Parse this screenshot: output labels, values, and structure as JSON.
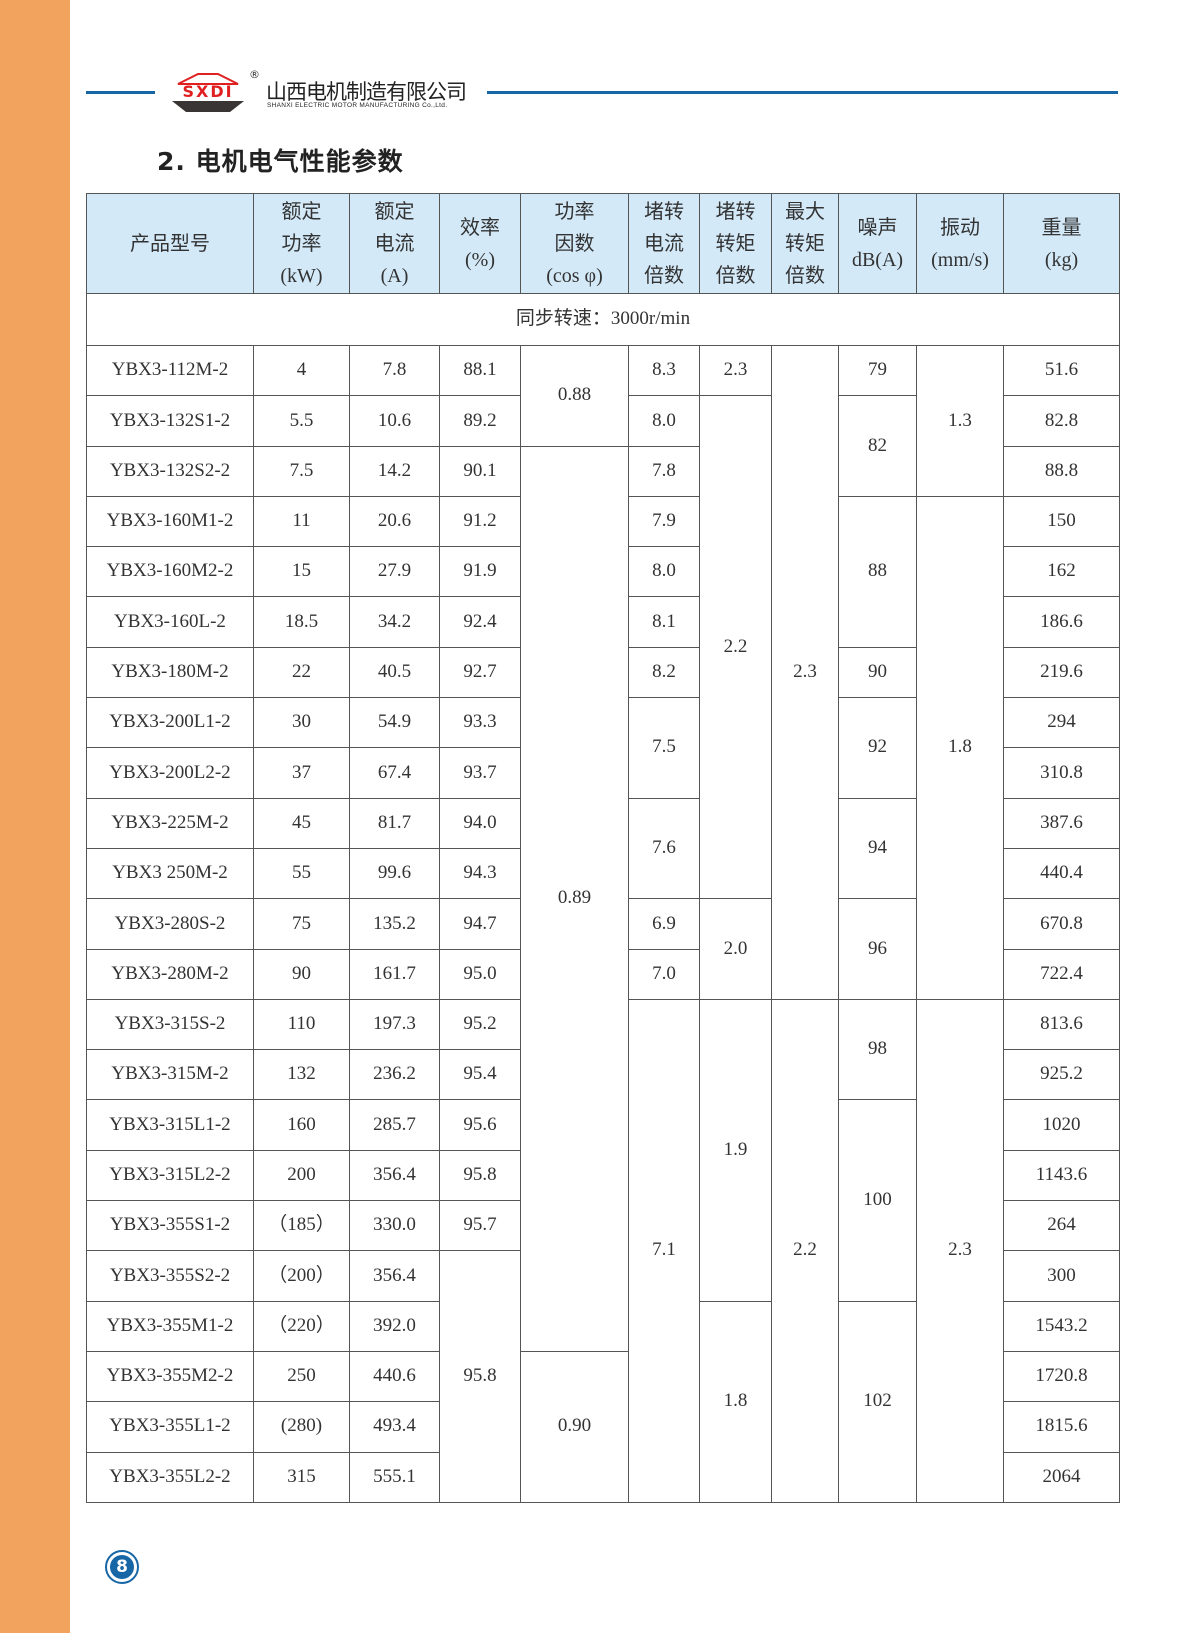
{
  "header": {
    "logo_text": "SXDI",
    "company_name": "山西电机制造有限公司",
    "company_name_en": "SHANXI ELECTRIC MOTOR MANUFACTURING Co.,Ltd.",
    "registered_mark": "®"
  },
  "section_title": "2. 电机电气性能参数",
  "table": {
    "columns": [
      "产品型号",
      "额定\n功率\n(kW)",
      "额定\n电流\n(A)",
      "效率\n(%)",
      "功率\n因数\n(cos φ)",
      "堵转\n电流\n倍数",
      "堵转\n转矩\n倍数",
      "最大\n转矩\n倍数",
      "噪声\ndB(A)",
      "振动\n(mm/s)",
      "重量\n(kg)"
    ],
    "sync_speed": "同步转速：3000r/min",
    "models": [
      "YBX3-112M-2",
      "YBX3-132S1-2",
      "YBX3-132S2-2",
      "YBX3-160M1-2",
      "YBX3-160M2-2",
      "YBX3-160L-2",
      "YBX3-180M-2",
      "YBX3-200L1-2",
      "YBX3-200L2-2",
      "YBX3-225M-2",
      "YBX3 250M-2",
      "YBX3-280S-2",
      "YBX3-280M-2",
      "YBX3-315S-2",
      "YBX3-315M-2",
      "YBX3-315L1-2",
      "YBX3-315L2-2",
      "YBX3-355S1-2",
      "YBX3-355S2-2",
      "YBX3-355M1-2",
      "YBX3-355M2-2",
      "YBX3-355L1-2",
      "YBX3-355L2-2"
    ],
    "power_kw": [
      "4",
      "5.5",
      "7.5",
      "11",
      "15",
      "18.5",
      "22",
      "30",
      "37",
      "45",
      "55",
      "75",
      "90",
      "110",
      "132",
      "160",
      "200",
      "（185）",
      "（200）",
      "（220）",
      "250",
      "(280)",
      "315"
    ],
    "current_a": [
      "7.8",
      "10.6",
      "14.2",
      "20.6",
      "27.9",
      "34.2",
      "40.5",
      "54.9",
      "67.4",
      "81.7",
      "99.6",
      "135.2",
      "161.7",
      "197.3",
      "236.2",
      "285.7",
      "356.4",
      "330.0",
      "356.4",
      "392.0",
      "440.6",
      "493.4",
      "555.1"
    ],
    "efficiency": [
      {
        "value": "88.1",
        "span": 1
      },
      {
        "value": "89.2",
        "span": 1
      },
      {
        "value": "90.1",
        "span": 1
      },
      {
        "value": "91.2",
        "span": 1
      },
      {
        "value": "91.9",
        "span": 1
      },
      {
        "value": "92.4",
        "span": 1
      },
      {
        "value": "92.7",
        "span": 1
      },
      {
        "value": "93.3",
        "span": 1
      },
      {
        "value": "93.7",
        "span": 1
      },
      {
        "value": "94.0",
        "span": 1
      },
      {
        "value": "94.3",
        "span": 1
      },
      {
        "value": "94.7",
        "span": 1
      },
      {
        "value": "95.0",
        "span": 1
      },
      {
        "value": "95.2",
        "span": 1
      },
      {
        "value": "95.4",
        "span": 1
      },
      {
        "value": "95.6",
        "span": 1
      },
      {
        "value": "95.8",
        "span": 1
      },
      {
        "value": "95.7",
        "span": 1
      },
      {
        "value": "95.8",
        "span": 5
      }
    ],
    "power_factor": [
      {
        "value": "0.88",
        "span": 2
      },
      {
        "value": "0.89",
        "span": 18
      },
      {
        "value": "0.90",
        "span": 3
      }
    ],
    "locked_rotor_current": [
      {
        "value": "8.3",
        "span": 1
      },
      {
        "value": "8.0",
        "span": 1
      },
      {
        "value": "7.8",
        "span": 1
      },
      {
        "value": "7.9",
        "span": 1
      },
      {
        "value": "8.0",
        "span": 1
      },
      {
        "value": "8.1",
        "span": 1
      },
      {
        "value": "8.2",
        "span": 1
      },
      {
        "value": "7.5",
        "span": 2
      },
      {
        "value": "7.6",
        "span": 2
      },
      {
        "value": "6.9",
        "span": 1
      },
      {
        "value": "7.0",
        "span": 1
      },
      {
        "value": "7.1",
        "span": 10
      }
    ],
    "locked_rotor_torque": [
      {
        "value": "2.3",
        "span": 1
      },
      {
        "value": "2.2",
        "span": 10
      },
      {
        "value": "2.0",
        "span": 2
      },
      {
        "value": "1.9",
        "span": 6
      },
      {
        "value": "1.8",
        "span": 4
      }
    ],
    "max_torque": [
      {
        "value": "2.3",
        "span": 13
      },
      {
        "value": "2.2",
        "span": 10
      }
    ],
    "noise": [
      {
        "value": "79",
        "span": 1
      },
      {
        "value": "82",
        "span": 2
      },
      {
        "value": "88",
        "span": 3
      },
      {
        "value": "90",
        "span": 1
      },
      {
        "value": "92",
        "span": 2
      },
      {
        "value": "94",
        "span": 2
      },
      {
        "value": "96",
        "span": 2
      },
      {
        "value": "98",
        "span": 2
      },
      {
        "value": "100",
        "span": 4
      },
      {
        "value": "102",
        "span": 4
      }
    ],
    "vibration": [
      {
        "value": "1.3",
        "span": 3
      },
      {
        "value": "1.8",
        "span": 10
      },
      {
        "value": "2.3",
        "span": 10
      }
    ],
    "weight_kg": [
      "51.6",
      "82.8",
      "88.8",
      "150",
      "162",
      "186.6",
      "219.6",
      "294",
      "310.8",
      "387.6",
      "440.4",
      "670.8",
      "722.4",
      "813.6",
      "925.2",
      "1020",
      "1143.6",
      "264",
      "300",
      "1543.2",
      "1720.8",
      "1815.6",
      "2064"
    ]
  },
  "page_number": "8",
  "colors": {
    "accent_blue": "#1766a6",
    "side_strip": "#F2A35E",
    "header_fill": "#d3e9f8",
    "logo_red": "#e02020"
  }
}
